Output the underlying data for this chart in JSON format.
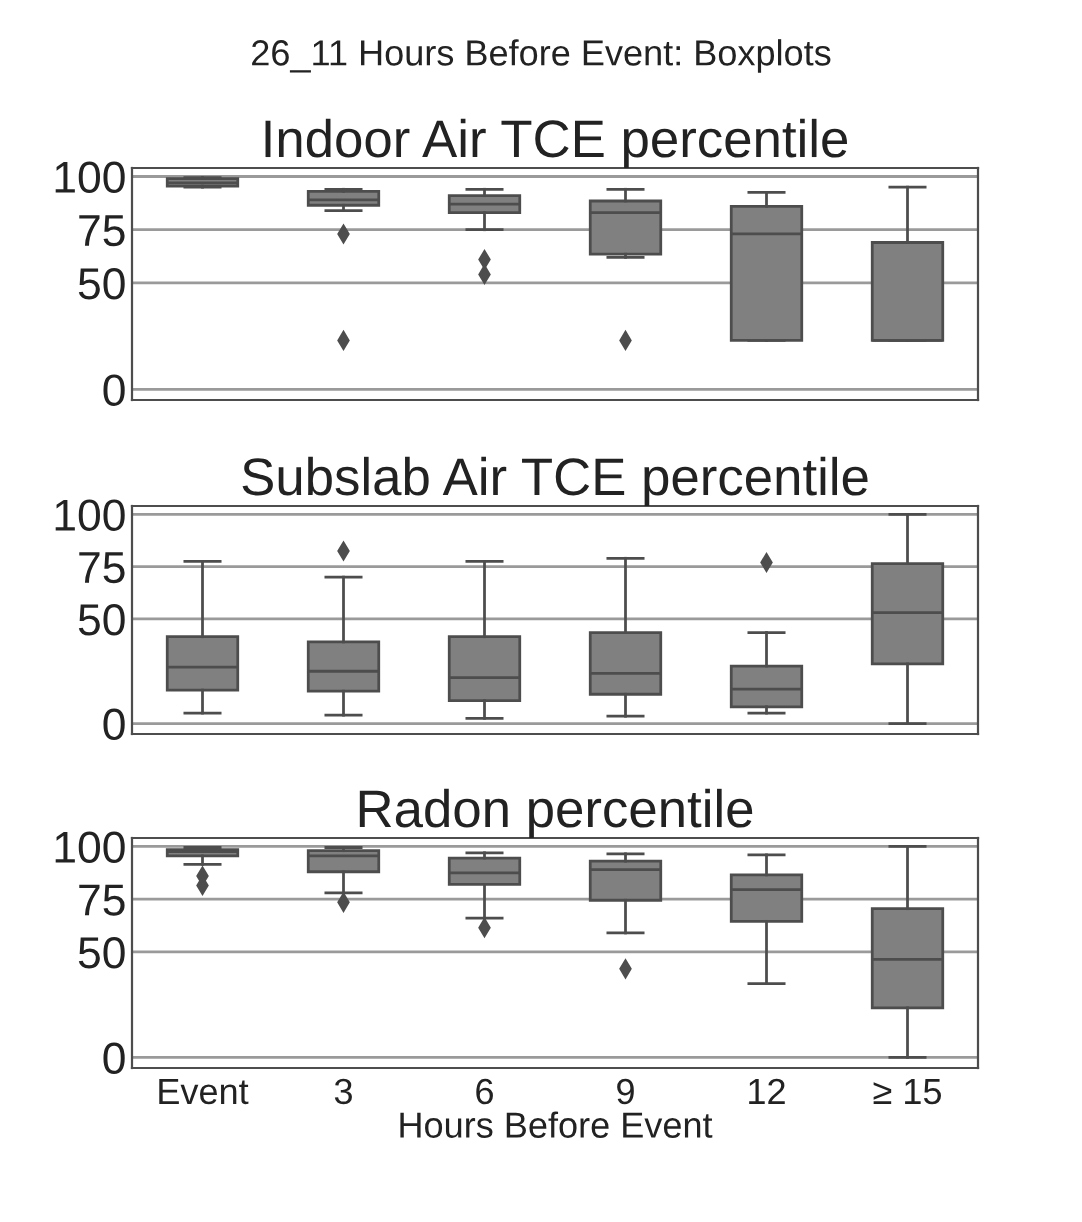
{
  "chart_data": [
    {
      "type": "box",
      "title": "Indoor Air TCE percentile",
      "annotations": [
        "26_11 Hours Before Event: Boxplots"
      ],
      "categories": [
        null,
        null,
        null,
        null,
        null,
        null
      ],
      "color": "#808080",
      "ylim": [
        -5,
        104
      ],
      "yticks": [
        0,
        50,
        75,
        100
      ],
      "grid": "y",
      "tick_labels": "y",
      "boxes": [
        {
          "low": 95,
          "q1": 95.5,
          "median": 97,
          "q3": 99,
          "high": 99.5
        },
        {
          "low": 84,
          "q1": 86.5,
          "median": 89,
          "q3": 93,
          "high": 94,
          "outliers": [
            73,
            23
          ]
        },
        {
          "low": 75,
          "q1": 83,
          "median": 87,
          "q3": 91,
          "high": 94,
          "outliers": [
            61,
            54
          ]
        },
        {
          "low": 62,
          "q1": 63.5,
          "median": 83,
          "q3": 88.5,
          "high": 94,
          "outliers": [
            23
          ]
        },
        {
          "low": 23,
          "q1": 23,
          "median": 73,
          "q3": 86,
          "high": 92.5
        },
        {
          "low": 23,
          "q1": 23,
          "median": 23,
          "q3": 69,
          "high": 95
        }
      ]
    },
    {
      "type": "box",
      "title": "Subslab Air TCE percentile",
      "categories": [
        null,
        null,
        null,
        null,
        null,
        null
      ],
      "color": "#808080",
      "ylim": [
        -5,
        104
      ],
      "yticks": [
        0,
        50,
        75,
        100
      ],
      "grid": "y",
      "tick_labels": "y",
      "boxes": [
        {
          "low": 5,
          "q1": 16,
          "median": 27,
          "q3": 41.5,
          "high": 77.5
        },
        {
          "low": 4,
          "q1": 15.5,
          "median": 25,
          "q3": 39,
          "high": 70,
          "outliers": [
            82.5
          ]
        },
        {
          "low": 2.5,
          "q1": 11,
          "median": 22,
          "q3": 41.5,
          "high": 77.5
        },
        {
          "low": 3.5,
          "q1": 14,
          "median": 24,
          "q3": 43.5,
          "high": 79
        },
        {
          "low": 5,
          "q1": 8,
          "median": 16.5,
          "q3": 27.5,
          "high": 43.5,
          "outliers": [
            77
          ]
        },
        {
          "low": 0,
          "q1": 28.5,
          "median": 53,
          "q3": 76.5,
          "high": 100
        }
      ]
    },
    {
      "type": "box",
      "title": "Radon percentile",
      "categories": [
        "Event",
        "3",
        "6",
        "9",
        "12",
        "≥ 15"
      ],
      "color": "#808080",
      "ylim": [
        -5,
        104
      ],
      "yticks": [
        0,
        50,
        75,
        100
      ],
      "grid": "y",
      "xlabel": "Hours Before Event",
      "boxes": [
        {
          "low": 91.5,
          "q1": 95.5,
          "median": 97.5,
          "q3": 98.5,
          "high": 99.5,
          "outliers": [
            86,
            81.5
          ]
        },
        {
          "low": 78,
          "q1": 88,
          "median": 95.5,
          "q3": 98,
          "high": 99.5,
          "outliers": [
            73.5
          ]
        },
        {
          "low": 66,
          "q1": 82,
          "median": 87.5,
          "q3": 94.5,
          "high": 97,
          "outliers": [
            61.5
          ]
        },
        {
          "low": 59,
          "q1": 74.5,
          "median": 89,
          "q3": 93,
          "high": 96.5,
          "outliers": [
            42
          ]
        },
        {
          "low": 35,
          "q1": 64.5,
          "median": 79.5,
          "q3": 86.5,
          "high": 96
        },
        {
          "low": 0,
          "q1": 23.5,
          "median": 46.5,
          "q3": 70.5,
          "high": 100
        }
      ]
    }
  ]
}
